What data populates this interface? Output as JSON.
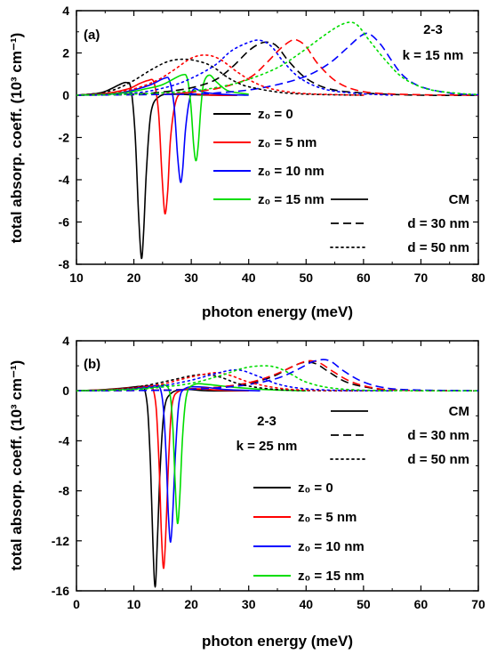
{
  "chart_data": [
    {
      "type": "line",
      "panel_label": "(a)",
      "xlabel": "photon energy (meV)",
      "ylabel": "total absorp. coeff. (10³ cm⁻¹)",
      "xlim": [
        10,
        80
      ],
      "ylim": [
        -8,
        4
      ],
      "xticks": [
        10,
        20,
        30,
        40,
        50,
        60,
        70,
        80
      ],
      "yticks": [
        -8,
        -6,
        -4,
        -2,
        0,
        2,
        4
      ],
      "annotations": [
        "2-3",
        "k = 15 nm"
      ],
      "legend_colors": [
        {
          "label": "z₀ = 0",
          "color": "#000000"
        },
        {
          "label": "z₀ = 5 nm",
          "color": "#ff0000"
        },
        {
          "label": "z₀ = 10 nm",
          "color": "#0000ff"
        },
        {
          "label": "z₀ = 15 nm",
          "color": "#00dd00"
        }
      ],
      "legend_styles": [
        {
          "label": "CM",
          "dash": "solid"
        },
        {
          "label": "d = 30 nm",
          "dash": "dashed"
        },
        {
          "label": "d = 50 nm",
          "dash": "dotted"
        }
      ],
      "series": [
        {
          "color": "#000000",
          "dash": "solid",
          "x": [
            10,
            14,
            16,
            17.5,
            18.7,
            19.5,
            20.2,
            20.8,
            21.3,
            21.7,
            22.2,
            23,
            24.5,
            27,
            30,
            34,
            38
          ],
          "y": [
            0,
            0.1,
            0.3,
            0.5,
            0.6,
            0.3,
            -1.8,
            -5.5,
            -7.7,
            -6.5,
            -3.5,
            -0.8,
            -0.05,
            0.05,
            0.02,
            0,
            0
          ]
        },
        {
          "color": "#ff0000",
          "dash": "solid",
          "x": [
            10,
            15,
            19,
            21,
            22.5,
            23.5,
            24.3,
            24.9,
            25.4,
            25.9,
            26.4,
            27.3,
            28.5,
            31,
            34,
            38
          ],
          "y": [
            0,
            0.08,
            0.3,
            0.55,
            0.7,
            0.6,
            -0.8,
            -3.8,
            -5.6,
            -4.5,
            -2,
            -0.3,
            0.1,
            0.05,
            0,
            0
          ]
        },
        {
          "color": "#0000ff",
          "dash": "solid",
          "x": [
            10,
            16,
            20,
            23,
            25.3,
            26.2,
            27,
            27.6,
            28.1,
            28.5,
            29,
            29.7,
            30.5,
            32,
            35,
            40
          ],
          "y": [
            0,
            0.05,
            0.25,
            0.5,
            0.8,
            0.7,
            -0.5,
            -2.8,
            -4.1,
            -3.5,
            -1.6,
            -0.2,
            0.3,
            0.15,
            0.05,
            0
          ]
        },
        {
          "color": "#00dd00",
          "dash": "solid",
          "x": [
            10,
            18,
            22,
            25,
            28.3,
            29.3,
            29.9,
            30.4,
            30.8,
            31.2,
            31.7,
            32.2,
            33.2,
            34.5,
            36.5,
            40
          ],
          "y": [
            0,
            0.1,
            0.3,
            0.5,
            0.95,
            0.8,
            -0.4,
            -2.3,
            -3.1,
            -2.4,
            -0.5,
            0.6,
            0.95,
            0.6,
            0.2,
            0.05
          ]
        },
        {
          "color": "#000000",
          "dash": "dashed",
          "x": [
            10,
            20,
            25,
            30,
            34,
            37,
            40,
            42,
            43.5,
            45,
            47,
            50,
            54,
            60,
            70,
            80
          ],
          "y": [
            0,
            0.05,
            0.15,
            0.35,
            0.7,
            1.3,
            2.1,
            2.45,
            2.5,
            2.3,
            1.6,
            0.8,
            0.3,
            0.1,
            0,
            0
          ]
        },
        {
          "color": "#ff0000",
          "dash": "dashed",
          "x": [
            10,
            25,
            30,
            35,
            40,
            43,
            45.5,
            47.5,
            48.5,
            50,
            52,
            55,
            58,
            62,
            70,
            80
          ],
          "y": [
            0,
            0.05,
            0.15,
            0.35,
            0.8,
            1.5,
            2.2,
            2.6,
            2.6,
            2.3,
            1.5,
            0.7,
            0.3,
            0.1,
            0.02,
            0
          ]
        },
        {
          "color": "#0000ff",
          "dash": "dashed",
          "x": [
            10,
            30,
            35,
            40,
            45,
            50,
            54,
            57,
            59.5,
            61,
            63,
            65,
            67,
            70,
            75,
            80
          ],
          "y": [
            0,
            0.05,
            0.12,
            0.25,
            0.5,
            0.9,
            1.5,
            2.2,
            2.8,
            2.9,
            2.4,
            1.6,
            0.9,
            0.4,
            0.1,
            0.02
          ]
        },
        {
          "color": "#000000",
          "dash": "dotted",
          "x": [
            10,
            14,
            17,
            20,
            23,
            26,
            29,
            32,
            34,
            36,
            38,
            40,
            45,
            50,
            60
          ],
          "y": [
            0,
            0.1,
            0.3,
            0.7,
            1.2,
            1.6,
            1.7,
            1.55,
            1.3,
            0.9,
            0.6,
            0.4,
            0.15,
            0.05,
            0
          ]
        },
        {
          "color": "#ff0000",
          "dash": "dotted",
          "x": [
            10,
            15,
            20,
            24,
            27,
            30,
            32.5,
            35,
            38,
            41,
            44,
            48,
            52,
            60
          ],
          "y": [
            0,
            0.08,
            0.3,
            0.7,
            1.2,
            1.75,
            1.9,
            1.7,
            1.1,
            0.6,
            0.3,
            0.12,
            0.05,
            0
          ]
        },
        {
          "color": "#0000ff",
          "dash": "dotted",
          "x": [
            10,
            20,
            26,
            30,
            34,
            37,
            40,
            42,
            44,
            46,
            49,
            53,
            58,
            65
          ],
          "y": [
            0,
            0.1,
            0.4,
            0.8,
            1.4,
            2.1,
            2.5,
            2.6,
            2.3,
            1.6,
            0.8,
            0.3,
            0.1,
            0
          ]
        },
        {
          "color": "#00dd00",
          "dash": "dotted",
          "x": [
            10,
            20,
            30,
            36,
            40,
            45,
            49,
            53,
            55.5,
            57.5,
            59,
            61,
            64,
            67,
            71,
            76,
            80
          ],
          "y": [
            0,
            0.05,
            0.2,
            0.45,
            0.75,
            1.3,
            2,
            2.8,
            3.25,
            3.45,
            3.3,
            2.6,
            1.6,
            0.8,
            0.3,
            0.1,
            0.03
          ]
        }
      ]
    },
    {
      "type": "line",
      "panel_label": "(b)",
      "xlabel": "photon energy (meV)",
      "ylabel": "total absorp. coeff. (10³ cm⁻¹)",
      "xlim": [
        0,
        70
      ],
      "ylim": [
        -16,
        4
      ],
      "xticks": [
        0,
        10,
        20,
        30,
        40,
        50,
        60,
        70
      ],
      "yticks": [
        -16,
        -12,
        -8,
        -4,
        0,
        4
      ],
      "annotations": [
        "2-3",
        "k = 25 nm"
      ],
      "legend_colors": [
        {
          "label": "z₀ = 0",
          "color": "#000000"
        },
        {
          "label": "z₀ = 5 nm",
          "color": "#ff0000"
        },
        {
          "label": "z₀ = 10 nm",
          "color": "#0000ff"
        },
        {
          "label": "z₀ = 15 nm",
          "color": "#00dd00"
        }
      ],
      "legend_styles": [
        {
          "label": "CM",
          "dash": "solid"
        },
        {
          "label": "d = 30 nm",
          "dash": "dashed"
        },
        {
          "label": "d = 50 nm",
          "dash": "dotted"
        }
      ],
      "series": [
        {
          "color": "#000000",
          "dash": "solid",
          "x": [
            0,
            5,
            9,
            11,
            11.8,
            12.4,
            12.9,
            13.3,
            13.7,
            14.1,
            14.6,
            15.3,
            16.5,
            19,
            23,
            30
          ],
          "y": [
            0,
            0.1,
            0.25,
            0.35,
            0.2,
            -1.5,
            -6,
            -12,
            -15.7,
            -12,
            -6,
            -1.5,
            -0.2,
            0.1,
            0,
            0
          ]
        },
        {
          "color": "#ff0000",
          "dash": "solid",
          "x": [
            0,
            5,
            10,
            12.5,
            13.3,
            13.9,
            14.4,
            14.8,
            15.2,
            15.6,
            16.1,
            16.7,
            18,
            21,
            25,
            30
          ],
          "y": [
            0,
            0.08,
            0.25,
            0.4,
            0.2,
            -1.5,
            -6,
            -11.5,
            -14.2,
            -11,
            -5,
            -1,
            0,
            0.15,
            0.05,
            0
          ]
        },
        {
          "color": "#0000ff",
          "dash": "solid",
          "x": [
            0,
            5,
            10,
            13.5,
            14.5,
            15.1,
            15.6,
            16,
            16.4,
            16.8,
            17.3,
            17.9,
            19,
            22,
            26,
            32
          ],
          "y": [
            0,
            0.05,
            0.2,
            0.4,
            0.3,
            -1.2,
            -5,
            -9.8,
            -12.1,
            -9.5,
            -4.5,
            -0.8,
            0.2,
            0.3,
            0.1,
            0
          ]
        },
        {
          "color": "#00dd00",
          "dash": "solid",
          "x": [
            0,
            5,
            10,
            14,
            15.5,
            16.3,
            16.8,
            17.2,
            17.6,
            18,
            18.5,
            19.2,
            20.5,
            23,
            27,
            33,
            40
          ],
          "y": [
            0,
            0.05,
            0.15,
            0.3,
            0.45,
            -0.3,
            -3,
            -7.5,
            -10.6,
            -8.5,
            -3.5,
            -0.3,
            0.5,
            0.5,
            0.3,
            0.1,
            0
          ]
        },
        {
          "color": "#000000",
          "dash": "dashed",
          "x": [
            0,
            15,
            20,
            25,
            30,
            34,
            37,
            39,
            40.5,
            42,
            44,
            47,
            51,
            56,
            70
          ],
          "y": [
            0,
            0.05,
            0.15,
            0.3,
            0.6,
            1.1,
            1.8,
            2.2,
            2.3,
            2.1,
            1.5,
            0.7,
            0.25,
            0.05,
            0
          ]
        },
        {
          "color": "#ff0000",
          "dash": "dashed",
          "x": [
            0,
            15,
            20,
            25,
            30,
            34,
            37.5,
            39.5,
            41,
            42.5,
            44.5,
            47.5,
            51,
            56,
            70
          ],
          "y": [
            0,
            0.05,
            0.15,
            0.3,
            0.65,
            1.2,
            1.9,
            2.3,
            2.4,
            2.2,
            1.6,
            0.8,
            0.3,
            0.05,
            0
          ]
        },
        {
          "color": "#0000ff",
          "dash": "dashed",
          "x": [
            0,
            15,
            20,
            25,
            30,
            35,
            38.5,
            41,
            43,
            44.5,
            46.5,
            49.5,
            53,
            58,
            70
          ],
          "y": [
            0,
            0.04,
            0.12,
            0.25,
            0.5,
            1,
            1.7,
            2.3,
            2.5,
            2.3,
            1.6,
            0.8,
            0.3,
            0.08,
            0
          ]
        },
        {
          "color": "#000000",
          "dash": "dotted",
          "x": [
            0,
            5,
            10,
            14,
            17,
            20,
            22.5,
            25,
            28,
            31,
            35,
            40,
            50
          ],
          "y": [
            0,
            0.05,
            0.25,
            0.6,
            0.9,
            1.2,
            1.3,
            1.1,
            0.6,
            0.3,
            0.1,
            0.02,
            0
          ]
        },
        {
          "color": "#ff0000",
          "dash": "dotted",
          "x": [
            0,
            5,
            10,
            15,
            19,
            22,
            24.5,
            27,
            30,
            34,
            38,
            45,
            55
          ],
          "y": [
            0,
            0.04,
            0.2,
            0.55,
            1,
            1.3,
            1.45,
            1.2,
            0.7,
            0.3,
            0.1,
            0.02,
            0
          ]
        },
        {
          "color": "#0000ff",
          "dash": "dotted",
          "x": [
            0,
            5,
            10,
            15,
            20,
            24,
            27,
            29,
            32,
            35,
            39,
            45,
            55
          ],
          "y": [
            0,
            0.03,
            0.15,
            0.4,
            0.85,
            1.35,
            1.65,
            1.6,
            1.1,
            0.55,
            0.2,
            0.04,
            0
          ]
        },
        {
          "color": "#00dd00",
          "dash": "dotted",
          "x": [
            0,
            10,
            15,
            20,
            25,
            29,
            32.5,
            35,
            37.5,
            40,
            44,
            50,
            60,
            70
          ],
          "y": [
            0,
            0.1,
            0.3,
            0.6,
            1.2,
            1.8,
            2,
            1.85,
            1.3,
            0.7,
            0.25,
            0.05,
            0,
            0
          ]
        }
      ]
    }
  ]
}
